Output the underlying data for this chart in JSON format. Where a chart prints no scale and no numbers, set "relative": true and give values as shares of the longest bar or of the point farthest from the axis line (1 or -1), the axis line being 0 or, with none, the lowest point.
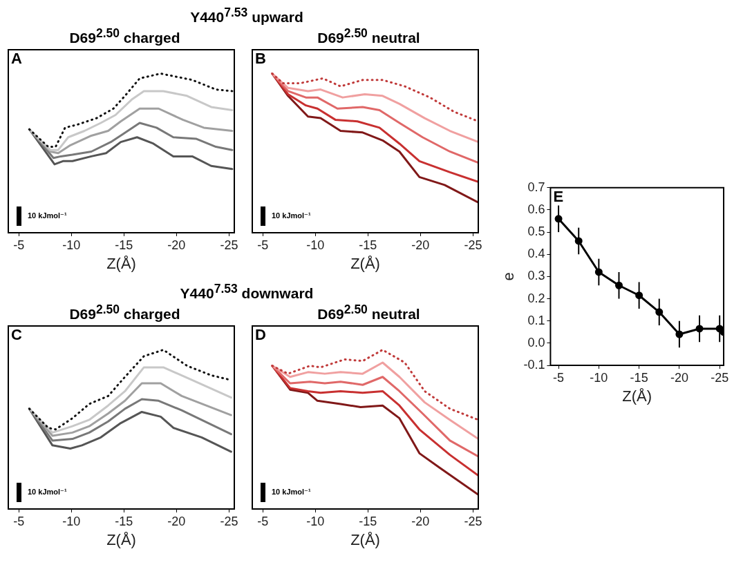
{
  "chart_data": [
    {
      "type": "line",
      "title": "Y440$^{7.53}$ upward",
      "subtitle": "D69$^{2.50}$ charged",
      "xlabel": "Z(Å)",
      "relative": true,
      "xlim": [
        -4,
        -25.5
      ],
      "xticks": [
        -5,
        -10,
        -15,
        -20,
        -25
      ],
      "legend": false,
      "line_style": "solid",
      "annotations": [
        "A",
        "10 kJmol⁻¹"
      ],
      "series": [
        {
          "color": "#111111",
          "line_style": "dotted",
          "x": [
            -6,
            -7.8,
            -8.5,
            -9.4,
            -10.6,
            -12.4,
            -14,
            -15.1,
            -16.5,
            -18.5,
            -21.5,
            -23.75,
            -25.3
          ],
          "values": [
            0.65,
            0.54,
            0.54,
            0.66,
            0.68,
            0.72,
            0.78,
            0.86,
            0.97,
            1,
            0.96,
            0.9,
            0.89
          ]
        },
        {
          "color": "#c8c8c8",
          "x": [
            -6,
            -8,
            -8.75,
            -9.7,
            -11.25,
            -12.8,
            -14.2,
            -15.8,
            -16.9,
            -18.75,
            -21,
            -23.3,
            -25.3
          ],
          "values": [
            0.65,
            0.52,
            0.52,
            0.6,
            0.64,
            0.69,
            0.74,
            0.84,
            0.89,
            0.89,
            0.86,
            0.79,
            0.77
          ]
        },
        {
          "color": "#a0a0a0",
          "x": [
            -6,
            -8,
            -8.75,
            -9.9,
            -11.9,
            -13.5,
            -14.7,
            -16.5,
            -18.3,
            -20.6,
            -22.6,
            -25.3
          ],
          "values": [
            0.65,
            0.51,
            0.5,
            0.55,
            0.61,
            0.64,
            0.7,
            0.78,
            0.78,
            0.71,
            0.66,
            0.64
          ]
        },
        {
          "color": "#787878",
          "x": [
            -6,
            -8.3,
            -9,
            -10.1,
            -11.9,
            -13.75,
            -14.9,
            -16.5,
            -18.1,
            -19.7,
            -21.9,
            -23.75,
            -25.3
          ],
          "values": [
            0.65,
            0.47,
            0.48,
            0.49,
            0.51,
            0.57,
            0.62,
            0.69,
            0.66,
            0.6,
            0.59,
            0.54,
            0.52
          ]
        },
        {
          "color": "#555555",
          "x": [
            -6,
            -8.4,
            -9.2,
            -10.1,
            -11.9,
            -13.3,
            -14.7,
            -16.25,
            -17.8,
            -19.7,
            -21.5,
            -23.3,
            -25.3
          ],
          "values": [
            0.65,
            0.43,
            0.45,
            0.45,
            0.48,
            0.5,
            0.57,
            0.6,
            0.56,
            0.48,
            0.48,
            0.42,
            0.4
          ]
        }
      ]
    },
    {
      "type": "line",
      "subtitle": "D69$^{2.50}$ neutral",
      "xlabel": "Z(Å)",
      "relative": true,
      "xlim": [
        -4,
        -25.5
      ],
      "xticks": [
        -5,
        -10,
        -15,
        -20,
        -25
      ],
      "legend": false,
      "line_style": "solid",
      "annotations": [
        "B",
        "10 kJmol⁻¹"
      ],
      "series": [
        {
          "color": "#c03a3a",
          "line_style": "dotted",
          "x": [
            -5.9,
            -6.9,
            -8.6,
            -10.7,
            -12.4,
            -14.5,
            -16.4,
            -18.5,
            -20.9,
            -23.2,
            -25.5
          ],
          "values": [
            1,
            0.94,
            0.94,
            0.97,
            0.92,
            0.96,
            0.96,
            0.92,
            0.85,
            0.76,
            0.7
          ]
        },
        {
          "color": "#f0a0a0",
          "x": [
            -5.9,
            -7.4,
            -9.3,
            -10.5,
            -12.6,
            -14.7,
            -16.4,
            -18,
            -20.4,
            -22.8,
            -25.5
          ],
          "values": [
            1,
            0.91,
            0.89,
            0.9,
            0.85,
            0.87,
            0.86,
            0.81,
            0.72,
            0.64,
            0.57
          ]
        },
        {
          "color": "#e06868",
          "x": [
            -5.9,
            -7.4,
            -9.1,
            -10.2,
            -12.1,
            -14.5,
            -16.1,
            -18,
            -20.2,
            -22.8,
            -25.5
          ],
          "values": [
            1,
            0.89,
            0.85,
            0.85,
            0.78,
            0.79,
            0.77,
            0.69,
            0.6,
            0.51,
            0.44
          ]
        },
        {
          "color": "#c83030",
          "x": [
            -5.9,
            -7.4,
            -9.1,
            -10.2,
            -11.9,
            -14,
            -16.1,
            -18,
            -19.9,
            -22.8,
            -25.5
          ],
          "values": [
            1,
            0.87,
            0.8,
            0.78,
            0.71,
            0.7,
            0.66,
            0.56,
            0.45,
            0.38,
            0.32
          ]
        },
        {
          "color": "#801818",
          "x": [
            -5.9,
            -7.4,
            -9.3,
            -10.5,
            -12.4,
            -14.5,
            -16.4,
            -18,
            -19.9,
            -22.3,
            -25.5
          ],
          "values": [
            1,
            0.86,
            0.73,
            0.72,
            0.64,
            0.63,
            0.58,
            0.51,
            0.35,
            0.3,
            0.19
          ]
        }
      ]
    },
    {
      "type": "line",
      "title": "Y440$^{7.53}$ downward",
      "subtitle": "D69$^{2.50}$ charged",
      "xlabel": "Z(Å)",
      "relative": true,
      "xlim": [
        -4,
        -25.5
      ],
      "xticks": [
        -5,
        -10,
        -15,
        -20,
        -25
      ],
      "legend": false,
      "line_style": "solid",
      "annotations": [
        "C",
        "10 kJmol⁻¹"
      ],
      "series": [
        {
          "color": "#111111",
          "line_style": "dotted",
          "x": [
            -6,
            -7.8,
            -8.5,
            -10.1,
            -11.7,
            -13.5,
            -15.1,
            -16.9,
            -18.75,
            -21,
            -23.3,
            -25.2
          ],
          "values": [
            0.63,
            0.51,
            0.5,
            0.57,
            0.66,
            0.71,
            0.83,
            0.96,
            1,
            0.9,
            0.84,
            0.81
          ]
        },
        {
          "color": "#c8c8c8",
          "x": [
            -6,
            -8.2,
            -10.1,
            -11.7,
            -13.5,
            -15.1,
            -16.9,
            -18.75,
            -21.5,
            -25.2
          ],
          "values": [
            0.63,
            0.48,
            0.52,
            0.56,
            0.65,
            0.74,
            0.89,
            0.89,
            0.81,
            0.7
          ]
        },
        {
          "color": "#a0a0a0",
          "x": [
            -6,
            -8.2,
            -10.1,
            -11.7,
            -13.5,
            -15.1,
            -16.7,
            -18.5,
            -20.5,
            -25.2
          ],
          "values": [
            0.63,
            0.46,
            0.48,
            0.52,
            0.6,
            0.68,
            0.79,
            0.79,
            0.71,
            0.59
          ]
        },
        {
          "color": "#787878",
          "x": [
            -6,
            -8.2,
            -10.1,
            -11.7,
            -13.5,
            -15.1,
            -16.7,
            -18.3,
            -20.5,
            -25.2
          ],
          "values": [
            0.63,
            0.43,
            0.44,
            0.48,
            0.55,
            0.63,
            0.69,
            0.68,
            0.62,
            0.47
          ]
        },
        {
          "color": "#555555",
          "x": [
            -6,
            -8.2,
            -9.9,
            -11,
            -12.8,
            -14.7,
            -16.7,
            -18.5,
            -19.7,
            -22.4,
            -25.2
          ],
          "values": [
            0.63,
            0.4,
            0.38,
            0.4,
            0.45,
            0.54,
            0.61,
            0.58,
            0.51,
            0.45,
            0.36
          ]
        }
      ]
    },
    {
      "type": "line",
      "subtitle": "D69$^{2.50}$ neutral",
      "xlabel": "Z(Å)",
      "relative": true,
      "xlim": [
        -4,
        -25.5
      ],
      "xticks": [
        -5,
        -10,
        -15,
        -20,
        -25
      ],
      "legend": false,
      "line_style": "solid",
      "annotations": [
        "D",
        "10 kJmol⁻¹"
      ],
      "series": [
        {
          "color": "#c03a3a",
          "line_style": "dotted",
          "x": [
            -5.9,
            -7.4,
            -9.5,
            -10.5,
            -12.8,
            -14.5,
            -16.4,
            -18.5,
            -20.4,
            -22.8,
            -25.5
          ],
          "values": [
            0.9,
            0.85,
            0.9,
            0.89,
            0.94,
            0.93,
            1,
            0.92,
            0.74,
            0.63,
            0.56
          ]
        },
        {
          "color": "#f0a0a0",
          "x": [
            -5.9,
            -7.6,
            -9.3,
            -10.9,
            -12.4,
            -14.5,
            -16.4,
            -18,
            -20.4,
            -22.8,
            -25.5
          ],
          "values": [
            0.9,
            0.83,
            0.86,
            0.85,
            0.86,
            0.85,
            0.92,
            0.83,
            0.67,
            0.56,
            0.44
          ]
        },
        {
          "color": "#e06868",
          "x": [
            -5.9,
            -7.6,
            -9.5,
            -10.9,
            -12.4,
            -14.5,
            -16.4,
            -18,
            -20.2,
            -22.8,
            -25.5
          ],
          "values": [
            0.9,
            0.79,
            0.8,
            0.79,
            0.8,
            0.78,
            0.83,
            0.74,
            0.6,
            0.43,
            0.33
          ]
        },
        {
          "color": "#c83030",
          "x": [
            -5.9,
            -7.6,
            -9.3,
            -10.5,
            -12.4,
            -14.5,
            -16.4,
            -18,
            -19.9,
            -22.8,
            -25.5
          ],
          "values": [
            0.9,
            0.76,
            0.74,
            0.73,
            0.74,
            0.73,
            0.74,
            0.65,
            0.5,
            0.34,
            0.21
          ]
        },
        {
          "color": "#801818",
          "x": [
            -5.9,
            -7.6,
            -9.3,
            -10.2,
            -12.4,
            -14.3,
            -16.4,
            -18,
            -19.9,
            -21.8,
            -25.5
          ],
          "values": [
            0.9,
            0.75,
            0.73,
            0.68,
            0.66,
            0.64,
            0.65,
            0.57,
            0.35,
            0.26,
            0.09
          ]
        }
      ]
    },
    {
      "type": "line",
      "xlabel": "Z(Å)",
      "ylabel": "e",
      "xlim": [
        -4,
        -25.5
      ],
      "xticks": [
        -5,
        -10,
        -15,
        -20,
        -25
      ],
      "ylim": [
        -0.1,
        0.7
      ],
      "yticks": [
        {
          "value": -0.1,
          "label": "-0.1"
        },
        {
          "value": 0,
          "label": "0.0"
        },
        {
          "value": 0.1,
          "label": "0.1"
        },
        {
          "value": 0.2,
          "label": "0.2"
        },
        {
          "value": 0.3,
          "label": "0.3"
        },
        {
          "value": 0.4,
          "label": "0.4"
        },
        {
          "value": 0.5,
          "label": "0.5"
        },
        {
          "value": 0.6,
          "label": "0.6"
        },
        {
          "value": 0.7,
          "label": "0.7"
        }
      ],
      "legend": false,
      "marker": "circle",
      "line_style": "solid",
      "annotations": [
        "E"
      ],
      "series": [
        {
          "color": "#000000",
          "x": [
            -5,
            -7.5,
            -10,
            -12.5,
            -15,
            -17.5,
            -20,
            -22.5,
            -25,
            -25.5
          ],
          "values": [
            0.56,
            0.46,
            0.32,
            0.26,
            0.215,
            0.14,
            0.04,
            0.065,
            0.065,
            0.05
          ],
          "errors": [
            0.06,
            0.06,
            0.06,
            0.06,
            0.06,
            0.06,
            0.06,
            0.06,
            0.06,
            null
          ]
        }
      ]
    }
  ]
}
